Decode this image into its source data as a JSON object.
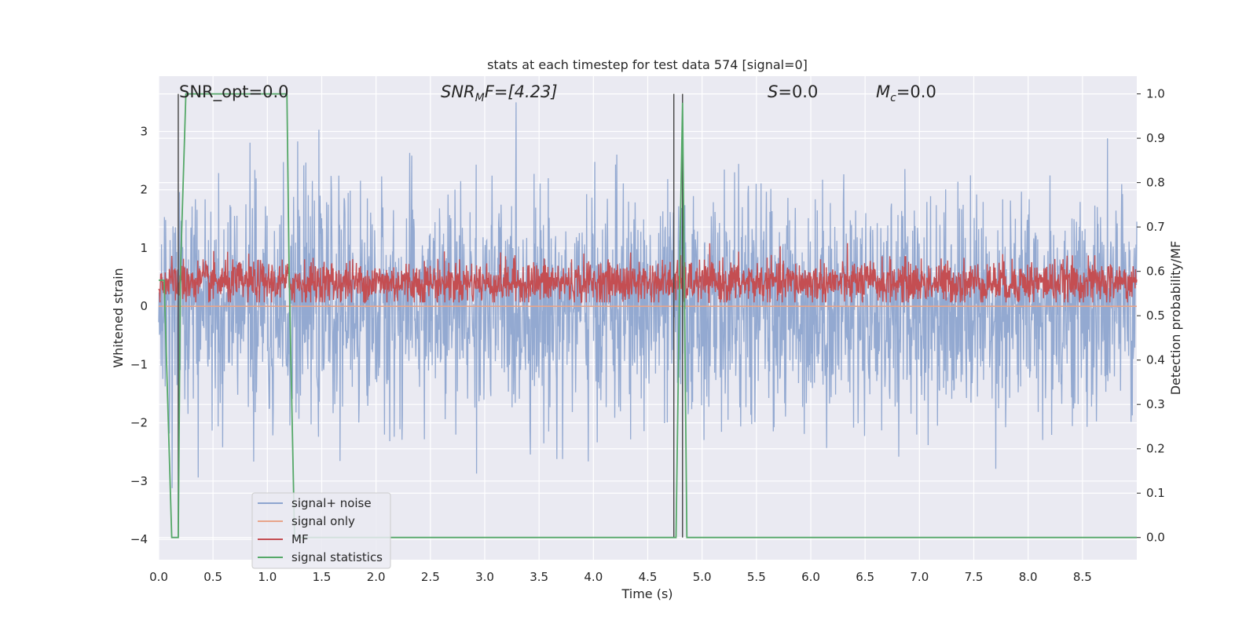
{
  "chart_data": {
    "type": "line",
    "title": "stats at each timestep for test data 574 [signal=0]",
    "xlabel": "Time (s)",
    "ylabel_left": "Whitened strain",
    "ylabel_right": "Detection probability/MF",
    "xlim": [
      0.0,
      9.0
    ],
    "ylim_left": [
      -4.35,
      3.95
    ],
    "ylim_right": [
      -0.05,
      1.04
    ],
    "x_ticks": [
      "0.0",
      "0.5",
      "1.0",
      "1.5",
      "2.0",
      "2.5",
      "3.0",
      "3.5",
      "4.0",
      "4.5",
      "5.0",
      "5.5",
      "6.0",
      "6.5",
      "7.0",
      "7.5",
      "8.0",
      "8.5"
    ],
    "y_ticks_left": [
      "3",
      "2",
      "1",
      "0",
      "−1",
      "−2",
      "−3",
      "−4"
    ],
    "y_ticks_right": [
      "1.0",
      "0.9",
      "0.8",
      "0.7",
      "0.6",
      "0.5",
      "0.4",
      "0.3",
      "0.2",
      "0.1",
      "0.0"
    ],
    "grid": true,
    "legend_position": "lower-left",
    "annotations": {
      "snr_opt": "SNR_opt=0.0",
      "snr_mf_base": "SNR",
      "snr_mf_sub": "M",
      "snr_mf_rest": "F=[4.23]",
      "s_label": "S",
      "s_value": "=0.0",
      "mc_base": "M",
      "mc_sub": "c",
      "mc_value": "=0.0"
    },
    "series": [
      {
        "name": "signal+ noise",
        "color": "#8ea5cf",
        "axis": "left",
        "description_range": [
          -3.5,
          3.5
        ],
        "typical_range": [
          -1.8,
          1.8
        ]
      },
      {
        "name": "signal only",
        "color": "#e8a58a",
        "axis": "left",
        "x": [
          0.0,
          9.0
        ],
        "y": [
          0.0,
          0.0
        ]
      },
      {
        "name": "MF",
        "color": "#c44e52",
        "axis": "right",
        "typical_range": [
          0.53,
          0.62
        ]
      },
      {
        "name": "signal statistics",
        "color": "#55a868",
        "axis": "right",
        "x": [
          0.0,
          0.05,
          0.12,
          0.18,
          0.2,
          0.25,
          1.18,
          1.2,
          1.25,
          4.74,
          4.76,
          4.8,
          4.82,
          4.86,
          4.9,
          9.0
        ],
        "y": [
          0.58,
          0.58,
          0.0,
          0.0,
          0.6,
          1.0,
          1.0,
          0.6,
          0.0,
          0.0,
          0.0,
          0.7,
          0.98,
          0.0,
          0.0,
          0.0
        ]
      }
    ],
    "vertical_lines": [
      0.18,
      4.74,
      4.82
    ],
    "vertical_line_color": "#444444"
  },
  "legend": {
    "items": [
      "signal+ noise",
      "signal only",
      "MF",
      "signal statistics"
    ]
  }
}
